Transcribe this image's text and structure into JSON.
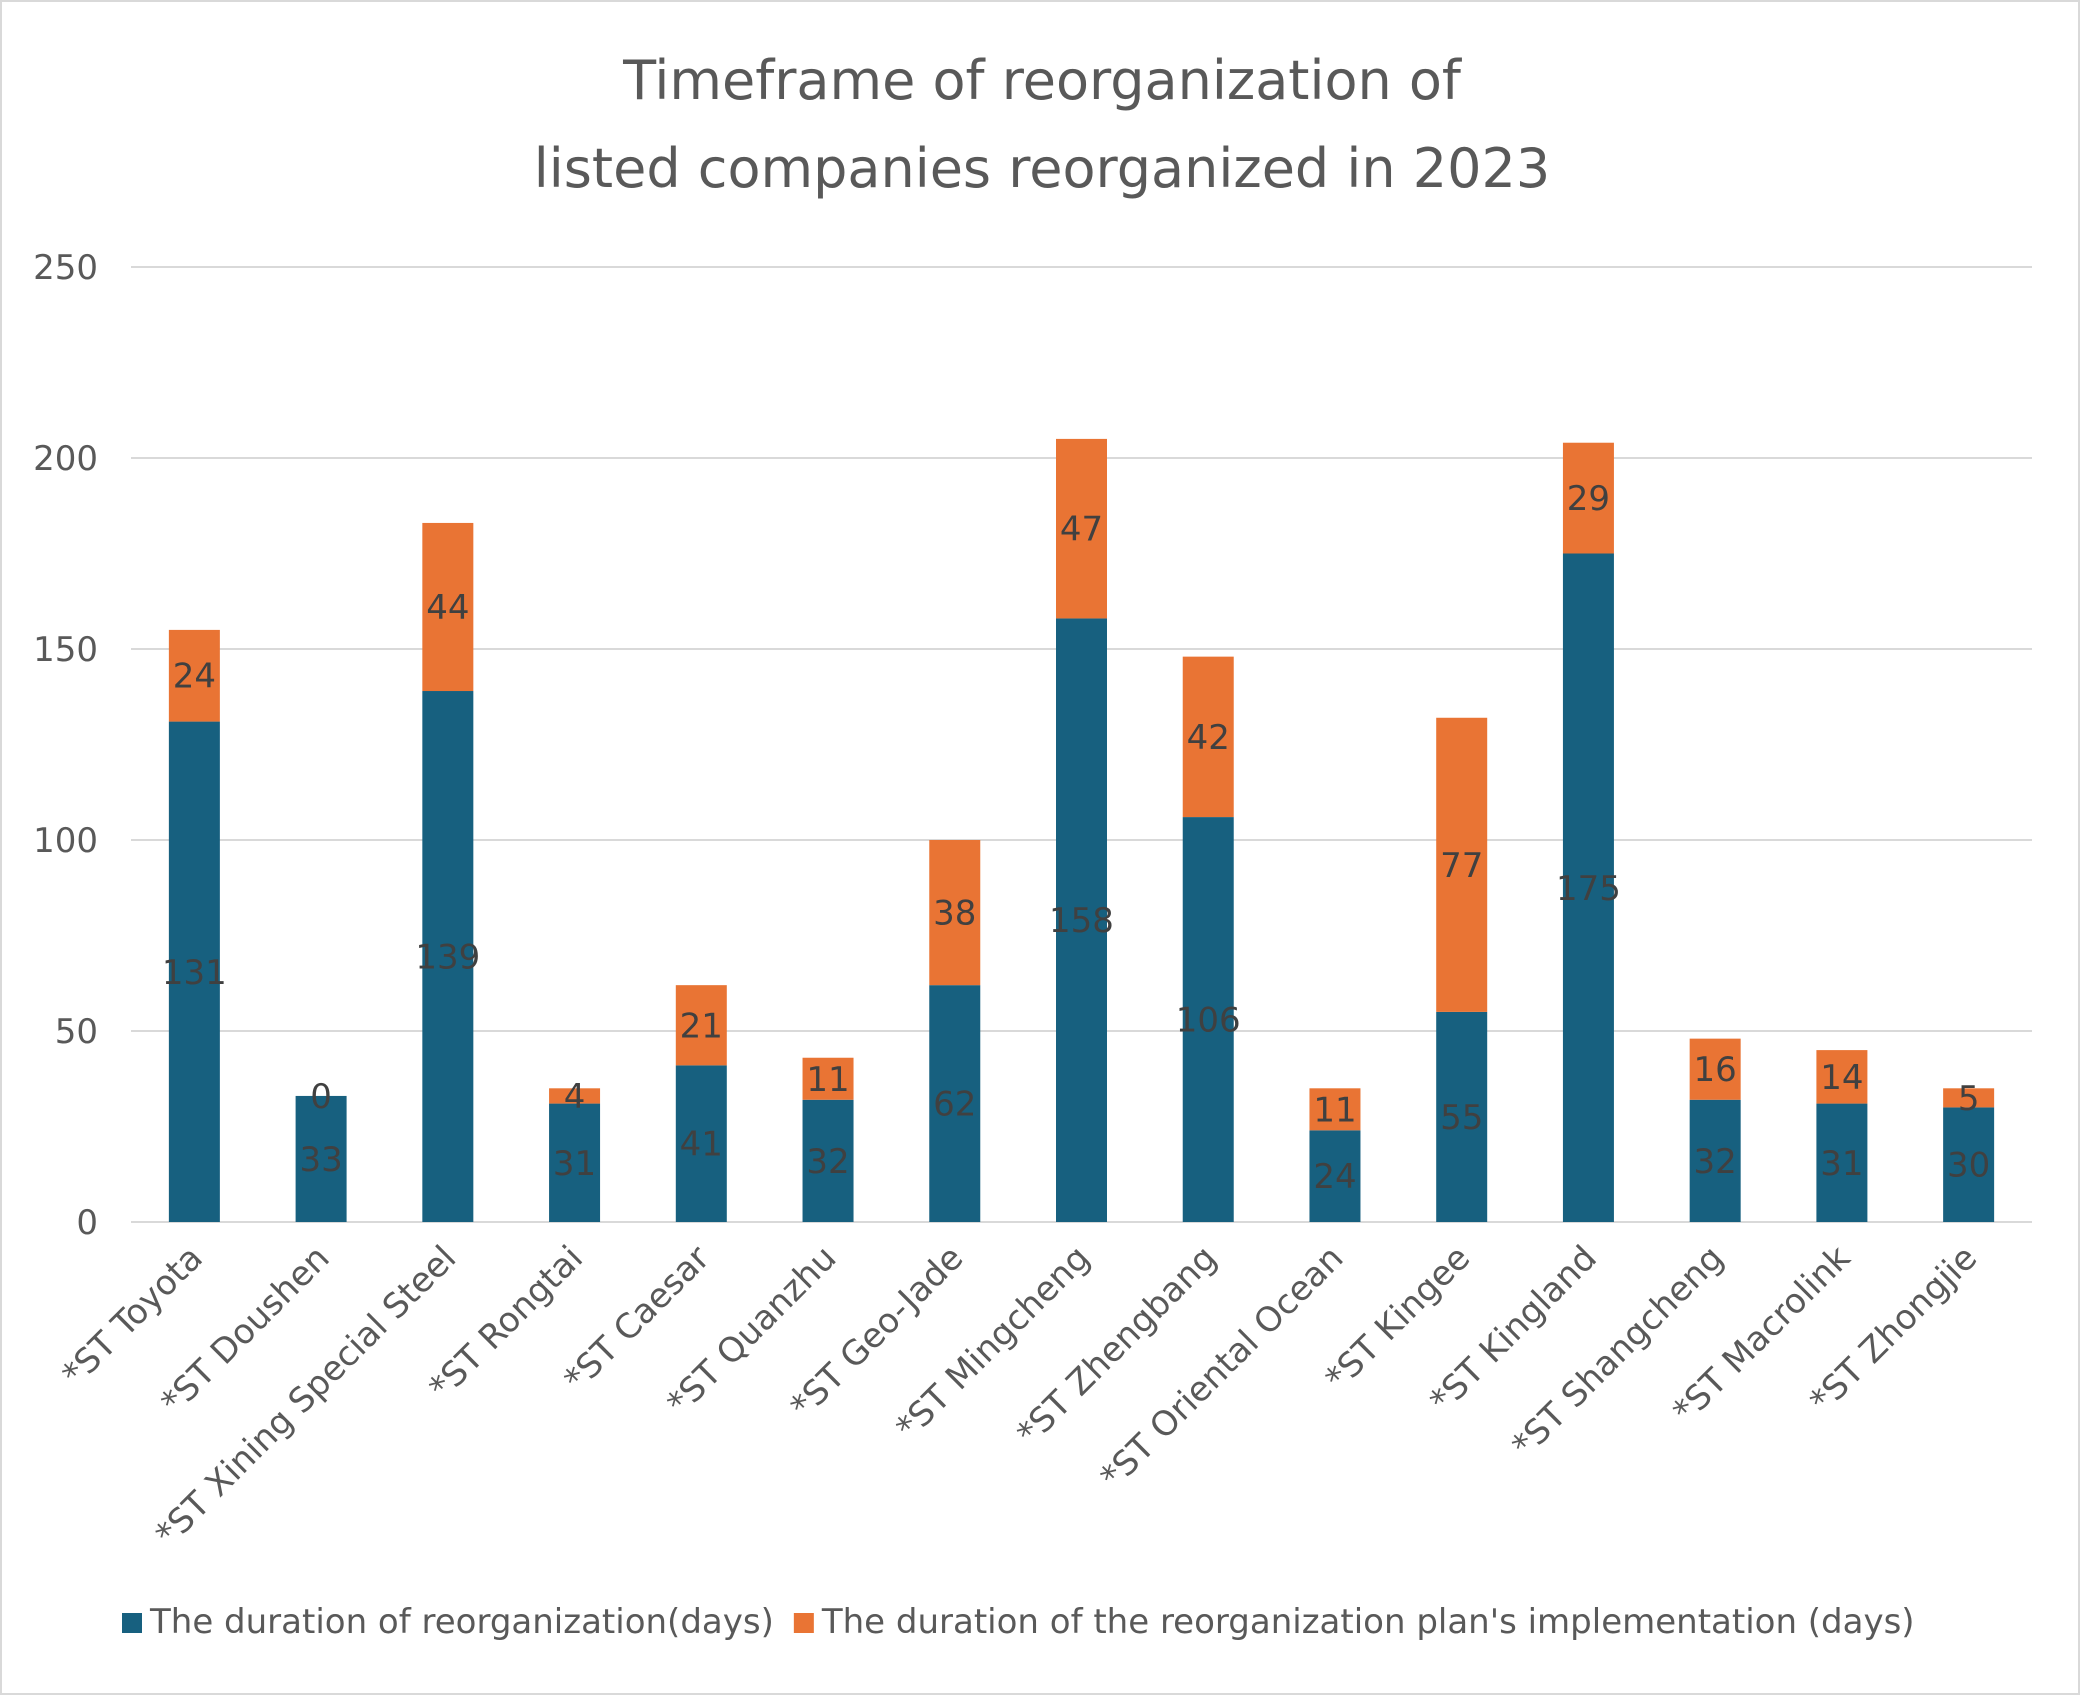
{
  "chart_data": {
    "type": "bar",
    "stacked": true,
    "title_lines": [
      "Timeframe of reorganization of",
      "listed companies reorganized in 2023"
    ],
    "xlabel": "",
    "ylabel": "",
    "ylim": [
      0,
      250
    ],
    "yticks": [
      0,
      50,
      100,
      150,
      200,
      250
    ],
    "grid": true,
    "legend_position": "bottom",
    "categories": [
      "*ST Toyota",
      "*ST Doushen",
      "*ST Xining Special Steel",
      "*ST Rongtai",
      "*ST Caesar",
      "*ST Quanzhu",
      "*ST Geo-Jade",
      "*ST Mingcheng",
      "*ST Zhengbang",
      "*ST Oriental Ocean",
      "*ST Kingee",
      "*ST Kingland",
      "*ST Shangcheng",
      "*ST Macrolink",
      "*ST Zhongjie"
    ],
    "series": [
      {
        "name": "The duration of reorganization(days)",
        "color": "#17607f",
        "values": [
          131,
          33,
          139,
          31,
          41,
          32,
          62,
          158,
          106,
          24,
          55,
          175,
          32,
          31,
          30
        ]
      },
      {
        "name": "The duration of the reorganization plan's implementation (days)",
        "color": "#e97434",
        "values": [
          24,
          0,
          44,
          4,
          21,
          11,
          38,
          47,
          42,
          11,
          77,
          29,
          16,
          14,
          5
        ]
      }
    ]
  }
}
